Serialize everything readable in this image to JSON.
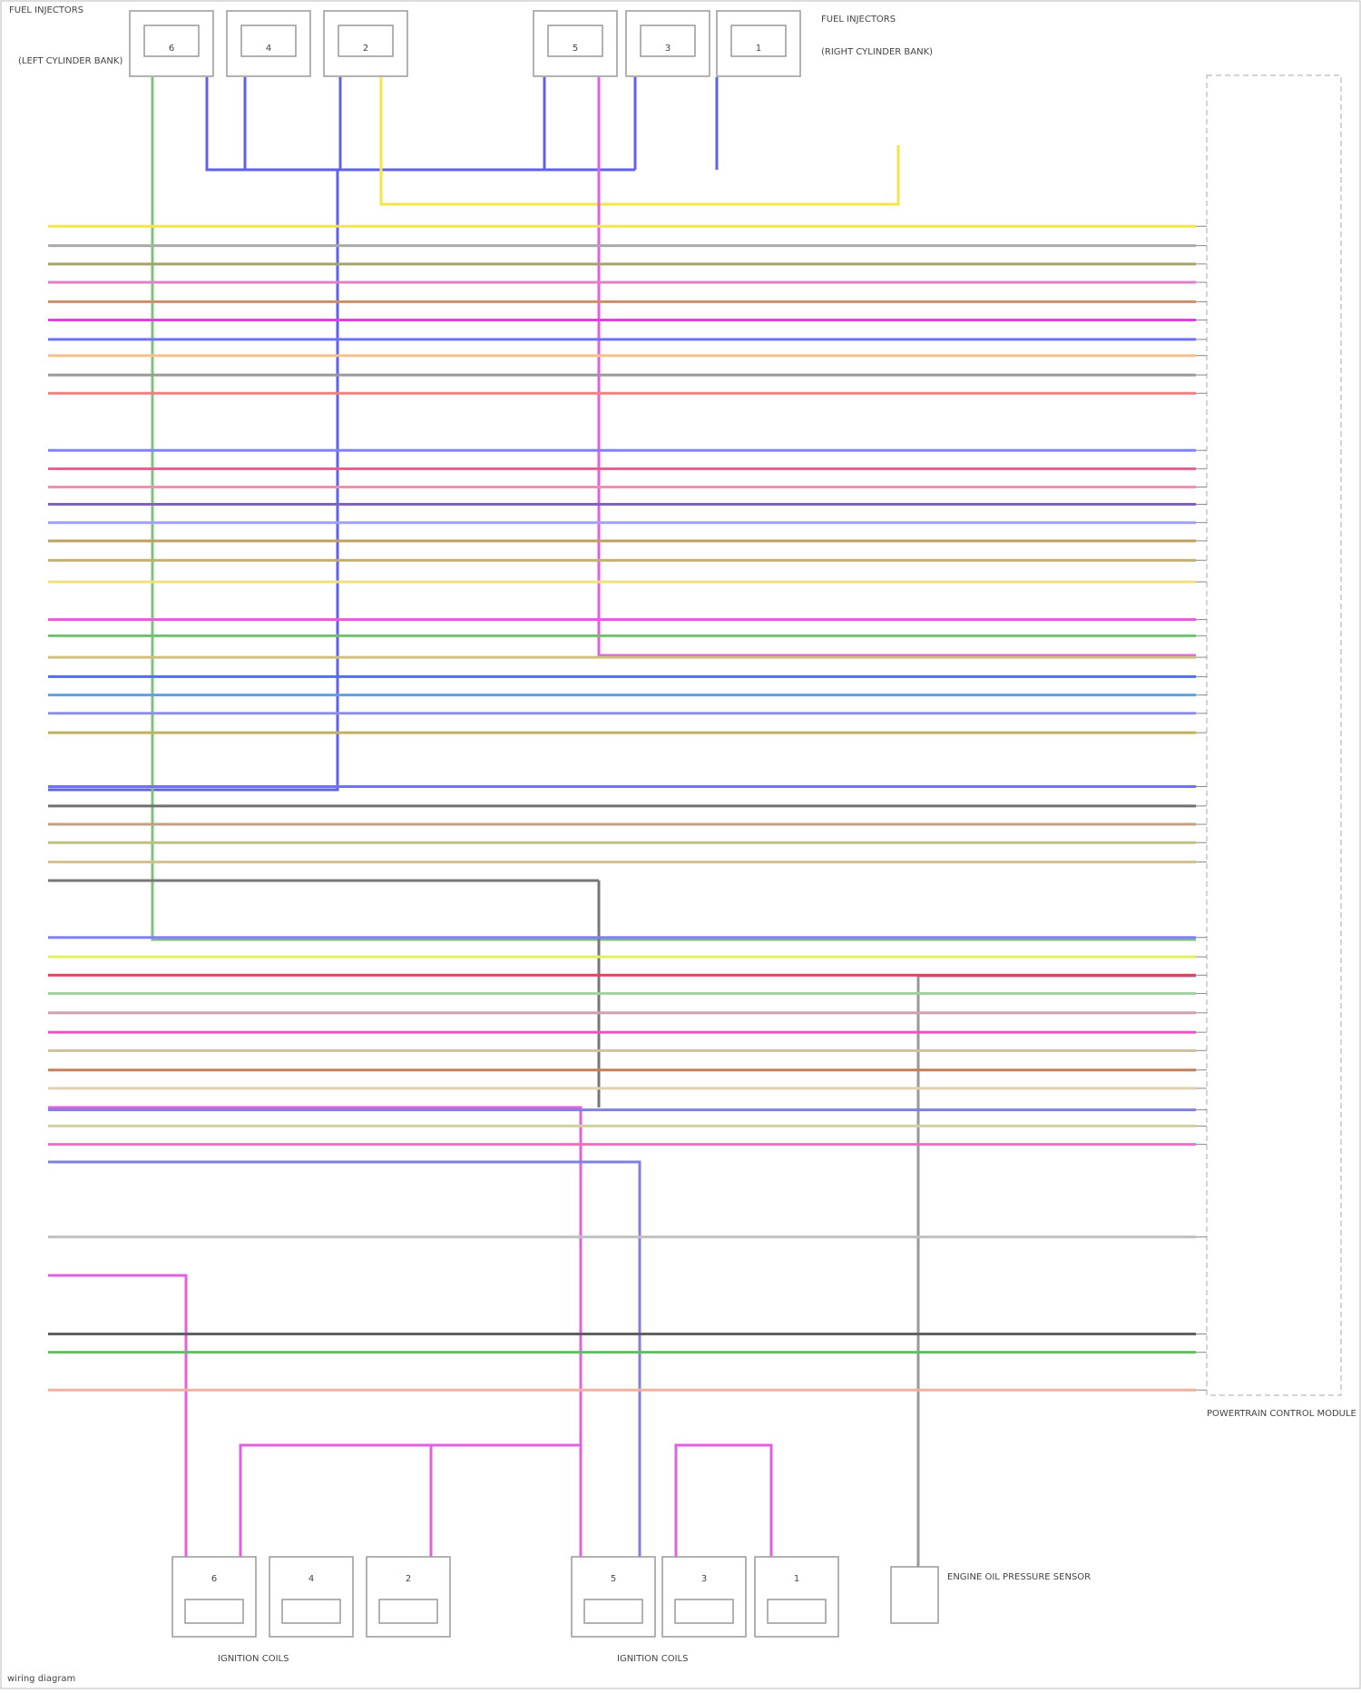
{
  "header": {
    "injectors_left": "FUEL INJECTORS",
    "injectors_left_bank": "(LEFT CYLINDER BANK)",
    "injectors_right": "FUEL INJECTORS",
    "injectors_right_bank": "(RIGHT CYLINDER BANK)",
    "coils_left": "IGNITION COILS",
    "coils_right": "IGNITION COILS",
    "module": "POWERTRAIN CONTROL MODULE",
    "sensor": "ENGINE OIL PRESSURE SENSOR",
    "footer": "wiring diagram"
  },
  "injectors": [
    {
      "label": "6"
    },
    {
      "label": "4"
    },
    {
      "label": "2"
    },
    {
      "label": "5"
    },
    {
      "label": "3"
    },
    {
      "label": "1"
    }
  ],
  "coils": [
    {
      "label": "6"
    },
    {
      "label": "4"
    },
    {
      "label": "2"
    },
    {
      "label": "5"
    },
    {
      "label": "3"
    },
    {
      "label": "1"
    }
  ],
  "wires": [
    {
      "color": "#f2e64a"
    },
    {
      "color": "#aaaaaa"
    },
    {
      "color": "#a3a36b"
    },
    {
      "color": "#e080c8"
    },
    {
      "color": "#c8906a"
    },
    {
      "color": "#e040e0"
    },
    {
      "color": "#7070ff"
    },
    {
      "color": "#f5c08a"
    },
    {
      "color": "#999999"
    },
    {
      "color": "#f08080"
    },
    {
      "color": "#8080ff"
    },
    {
      "color": "#e06090"
    },
    {
      "color": "#f090b0"
    },
    {
      "color": "#8060c0"
    },
    {
      "color": "#a0a0ff"
    },
    {
      "color": "#c0a060"
    },
    {
      "color": "#c0b070"
    },
    {
      "color": "#f0e080"
    },
    {
      "color": "#e060e0"
    },
    {
      "color": "#70c070"
    },
    {
      "color": "#d0c080"
    },
    {
      "color": "#5070e0"
    },
    {
      "color": "#60a0e0"
    },
    {
      "color": "#9090e0"
    },
    {
      "color": "#c0b060"
    },
    {
      "color": "#7070ff"
    },
    {
      "color": "#707070"
    },
    {
      "color": "#c0a080"
    },
    {
      "color": "#c0c080"
    },
    {
      "color": "#d0c090"
    },
    {
      "color": "#8080ff"
    },
    {
      "color": "#e0f060"
    },
    {
      "color": "#e04060"
    },
    {
      "color": "#a0d0a0"
    },
    {
      "color": "#d0a0b0"
    },
    {
      "color": "#f050c0"
    },
    {
      "color": "#d0c0a0"
    },
    {
      "color": "#c08060"
    },
    {
      "color": "#e0d0b0"
    },
    {
      "color": "#8080e0"
    },
    {
      "color": "#d0d0a0"
    },
    {
      "color": "#f070c0"
    },
    {
      "color": "#c0c0c0"
    },
    {
      "color": "#606060"
    },
    {
      "color": "#60c060"
    },
    {
      "color": "#f0b0a0"
    }
  ]
}
